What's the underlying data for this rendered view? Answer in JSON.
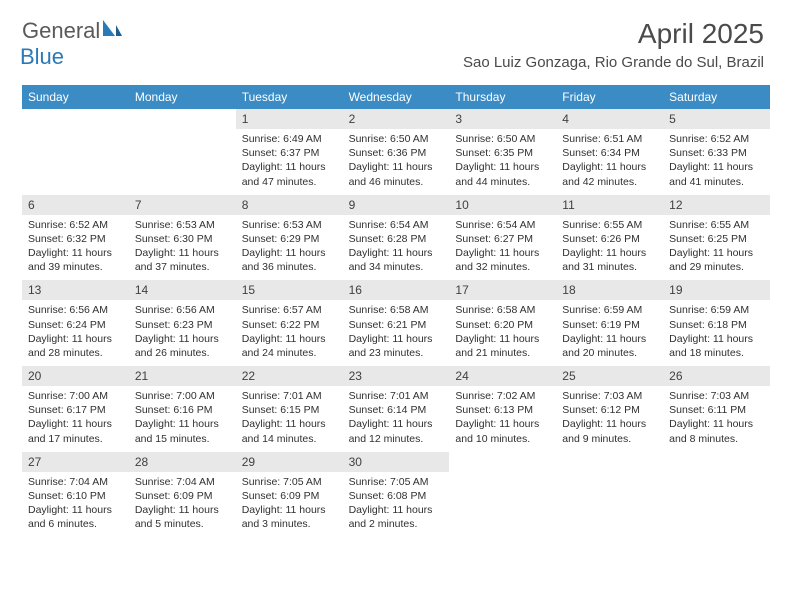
{
  "logo": {
    "text1": "General",
    "text2": "Blue"
  },
  "title": "April 2025",
  "location": "Sao Luiz Gonzaga, Rio Grande do Sul, Brazil",
  "colors": {
    "header_bg": "#3b8bc4",
    "header_fg": "#ffffff",
    "daynum_bg": "#e8e8e8",
    "daynum_fg": "#404040",
    "body_fg": "#303030",
    "page_bg": "#ffffff",
    "logo_gray": "#5a5a5a",
    "logo_blue": "#2a7ab8"
  },
  "weekdays": [
    "Sunday",
    "Monday",
    "Tuesday",
    "Wednesday",
    "Thursday",
    "Friday",
    "Saturday"
  ],
  "weeks": [
    [
      {
        "n": "",
        "sr": "",
        "ss": "",
        "dl": ""
      },
      {
        "n": "",
        "sr": "",
        "ss": "",
        "dl": ""
      },
      {
        "n": "1",
        "sr": "Sunrise: 6:49 AM",
        "ss": "Sunset: 6:37 PM",
        "dl": "Daylight: 11 hours and 47 minutes."
      },
      {
        "n": "2",
        "sr": "Sunrise: 6:50 AM",
        "ss": "Sunset: 6:36 PM",
        "dl": "Daylight: 11 hours and 46 minutes."
      },
      {
        "n": "3",
        "sr": "Sunrise: 6:50 AM",
        "ss": "Sunset: 6:35 PM",
        "dl": "Daylight: 11 hours and 44 minutes."
      },
      {
        "n": "4",
        "sr": "Sunrise: 6:51 AM",
        "ss": "Sunset: 6:34 PM",
        "dl": "Daylight: 11 hours and 42 minutes."
      },
      {
        "n": "5",
        "sr": "Sunrise: 6:52 AM",
        "ss": "Sunset: 6:33 PM",
        "dl": "Daylight: 11 hours and 41 minutes."
      }
    ],
    [
      {
        "n": "6",
        "sr": "Sunrise: 6:52 AM",
        "ss": "Sunset: 6:32 PM",
        "dl": "Daylight: 11 hours and 39 minutes."
      },
      {
        "n": "7",
        "sr": "Sunrise: 6:53 AM",
        "ss": "Sunset: 6:30 PM",
        "dl": "Daylight: 11 hours and 37 minutes."
      },
      {
        "n": "8",
        "sr": "Sunrise: 6:53 AM",
        "ss": "Sunset: 6:29 PM",
        "dl": "Daylight: 11 hours and 36 minutes."
      },
      {
        "n": "9",
        "sr": "Sunrise: 6:54 AM",
        "ss": "Sunset: 6:28 PM",
        "dl": "Daylight: 11 hours and 34 minutes."
      },
      {
        "n": "10",
        "sr": "Sunrise: 6:54 AM",
        "ss": "Sunset: 6:27 PM",
        "dl": "Daylight: 11 hours and 32 minutes."
      },
      {
        "n": "11",
        "sr": "Sunrise: 6:55 AM",
        "ss": "Sunset: 6:26 PM",
        "dl": "Daylight: 11 hours and 31 minutes."
      },
      {
        "n": "12",
        "sr": "Sunrise: 6:55 AM",
        "ss": "Sunset: 6:25 PM",
        "dl": "Daylight: 11 hours and 29 minutes."
      }
    ],
    [
      {
        "n": "13",
        "sr": "Sunrise: 6:56 AM",
        "ss": "Sunset: 6:24 PM",
        "dl": "Daylight: 11 hours and 28 minutes."
      },
      {
        "n": "14",
        "sr": "Sunrise: 6:56 AM",
        "ss": "Sunset: 6:23 PM",
        "dl": "Daylight: 11 hours and 26 minutes."
      },
      {
        "n": "15",
        "sr": "Sunrise: 6:57 AM",
        "ss": "Sunset: 6:22 PM",
        "dl": "Daylight: 11 hours and 24 minutes."
      },
      {
        "n": "16",
        "sr": "Sunrise: 6:58 AM",
        "ss": "Sunset: 6:21 PM",
        "dl": "Daylight: 11 hours and 23 minutes."
      },
      {
        "n": "17",
        "sr": "Sunrise: 6:58 AM",
        "ss": "Sunset: 6:20 PM",
        "dl": "Daylight: 11 hours and 21 minutes."
      },
      {
        "n": "18",
        "sr": "Sunrise: 6:59 AM",
        "ss": "Sunset: 6:19 PM",
        "dl": "Daylight: 11 hours and 20 minutes."
      },
      {
        "n": "19",
        "sr": "Sunrise: 6:59 AM",
        "ss": "Sunset: 6:18 PM",
        "dl": "Daylight: 11 hours and 18 minutes."
      }
    ],
    [
      {
        "n": "20",
        "sr": "Sunrise: 7:00 AM",
        "ss": "Sunset: 6:17 PM",
        "dl": "Daylight: 11 hours and 17 minutes."
      },
      {
        "n": "21",
        "sr": "Sunrise: 7:00 AM",
        "ss": "Sunset: 6:16 PM",
        "dl": "Daylight: 11 hours and 15 minutes."
      },
      {
        "n": "22",
        "sr": "Sunrise: 7:01 AM",
        "ss": "Sunset: 6:15 PM",
        "dl": "Daylight: 11 hours and 14 minutes."
      },
      {
        "n": "23",
        "sr": "Sunrise: 7:01 AM",
        "ss": "Sunset: 6:14 PM",
        "dl": "Daylight: 11 hours and 12 minutes."
      },
      {
        "n": "24",
        "sr": "Sunrise: 7:02 AM",
        "ss": "Sunset: 6:13 PM",
        "dl": "Daylight: 11 hours and 10 minutes."
      },
      {
        "n": "25",
        "sr": "Sunrise: 7:03 AM",
        "ss": "Sunset: 6:12 PM",
        "dl": "Daylight: 11 hours and 9 minutes."
      },
      {
        "n": "26",
        "sr": "Sunrise: 7:03 AM",
        "ss": "Sunset: 6:11 PM",
        "dl": "Daylight: 11 hours and 8 minutes."
      }
    ],
    [
      {
        "n": "27",
        "sr": "Sunrise: 7:04 AM",
        "ss": "Sunset: 6:10 PM",
        "dl": "Daylight: 11 hours and 6 minutes."
      },
      {
        "n": "28",
        "sr": "Sunrise: 7:04 AM",
        "ss": "Sunset: 6:09 PM",
        "dl": "Daylight: 11 hours and 5 minutes."
      },
      {
        "n": "29",
        "sr": "Sunrise: 7:05 AM",
        "ss": "Sunset: 6:09 PM",
        "dl": "Daylight: 11 hours and 3 minutes."
      },
      {
        "n": "30",
        "sr": "Sunrise: 7:05 AM",
        "ss": "Sunset: 6:08 PM",
        "dl": "Daylight: 11 hours and 2 minutes."
      },
      {
        "n": "",
        "sr": "",
        "ss": "",
        "dl": ""
      },
      {
        "n": "",
        "sr": "",
        "ss": "",
        "dl": ""
      },
      {
        "n": "",
        "sr": "",
        "ss": "",
        "dl": ""
      }
    ]
  ]
}
